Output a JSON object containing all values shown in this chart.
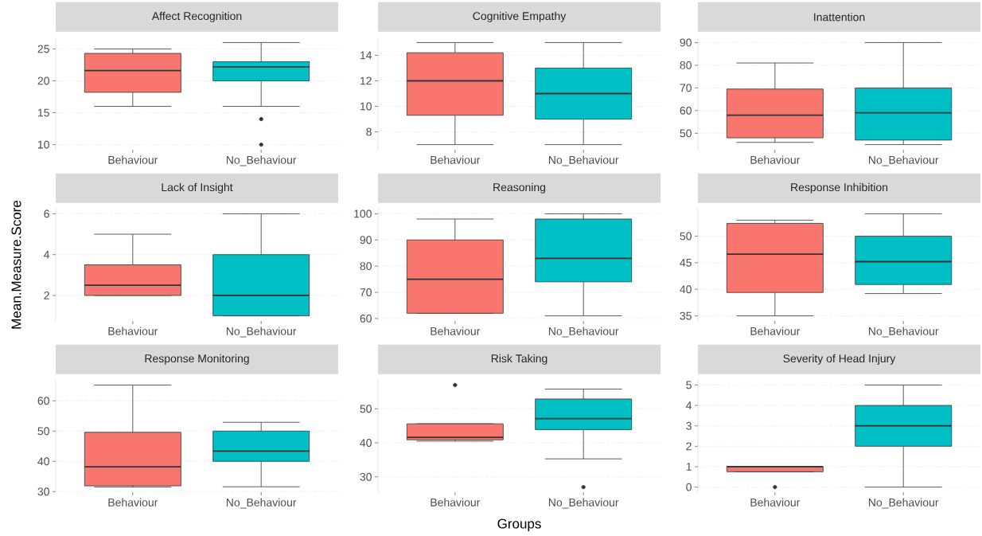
{
  "chart_data": [
    {
      "type": "box",
      "title": "Affect Recognition",
      "categories": [
        "Behaviour",
        "No_Behaviour"
      ],
      "colors": [
        "#f8766d",
        "#00bfc4"
      ],
      "ylim": [
        9.2,
        26.8
      ],
      "yticks": [
        10,
        15,
        20,
        25
      ],
      "grid": "y",
      "boxes": [
        {
          "low": 16,
          "q1": 18.2,
          "median": 21.6,
          "q3": 24.3,
          "high": 25
        },
        {
          "low": 16,
          "q1": 20,
          "median": 22.2,
          "q3": 23,
          "high": 26,
          "outliers": [
            14,
            10
          ]
        }
      ]
    },
    {
      "type": "box",
      "title": "Cognitive Empathy",
      "categories": [
        "Behaviour",
        "No_Behaviour"
      ],
      "colors": [
        "#f8766d",
        "#00bfc4"
      ],
      "ylim": [
        6.6,
        15.4
      ],
      "yticks": [
        8,
        10,
        12,
        14
      ],
      "grid": "y",
      "boxes": [
        {
          "low": 7,
          "q1": 9.3,
          "median": 12,
          "q3": 14.2,
          "high": 15
        },
        {
          "low": 7,
          "q1": 9,
          "median": 11,
          "q3": 13,
          "high": 15
        }
      ]
    },
    {
      "type": "box",
      "title": "Inattention",
      "categories": [
        "Behaviour",
        "No_Behaviour"
      ],
      "colors": [
        "#f8766d",
        "#00bfc4"
      ],
      "ylim": [
        42.75,
        92.25
      ],
      "yticks": [
        50,
        60,
        70,
        80,
        90
      ],
      "grid": "y",
      "boxes": [
        {
          "low": 46,
          "q1": 48,
          "median": 58,
          "q3": 69.5,
          "high": 81
        },
        {
          "low": 45,
          "q1": 47,
          "median": 59,
          "q3": 70,
          "high": 90
        }
      ]
    },
    {
      "type": "box",
      "title": "Lack of Insight",
      "ylabel": "Mean.Measure.Score",
      "categories": [
        "Behaviour",
        "No_Behaviour"
      ],
      "colors": [
        "#f8766d",
        "#00bfc4"
      ],
      "ylim": [
        0.75,
        6.25
      ],
      "yticks": [
        2,
        4,
        6
      ],
      "grid": "y",
      "boxes": [
        {
          "low": 2,
          "q1": 2,
          "median": 2.5,
          "q3": 3.5,
          "high": 5
        },
        {
          "low": 1,
          "q1": 1,
          "median": 2,
          "q3": 4,
          "high": 6
        }
      ]
    },
    {
      "type": "box",
      "title": "Reasoning",
      "categories": [
        "Behaviour",
        "No_Behaviour"
      ],
      "colors": [
        "#f8766d",
        "#00bfc4"
      ],
      "ylim": [
        59.05,
        101.95
      ],
      "yticks": [
        60,
        70,
        80,
        90,
        100
      ],
      "grid": "y",
      "boxes": [
        {
          "low": 62,
          "q1": 62,
          "median": 75,
          "q3": 90,
          "high": 98
        },
        {
          "low": 61,
          "q1": 74,
          "median": 83,
          "q3": 98,
          "high": 100
        }
      ]
    },
    {
      "type": "box",
      "title": "Response Inhibition",
      "categories": [
        "Behaviour",
        "No_Behaviour"
      ],
      "colors": [
        "#f8766d",
        "#00bfc4"
      ],
      "ylim": [
        34.04,
        55.16
      ],
      "yticks": [
        35,
        40,
        45,
        50
      ],
      "grid": "y",
      "boxes": [
        {
          "low": 35,
          "q1": 39.4,
          "median": 46.6,
          "q3": 52.4,
          "high": 53
        },
        {
          "low": 39.2,
          "q1": 40.9,
          "median": 45.2,
          "q3": 50,
          "high": 54.2
        }
      ]
    },
    {
      "type": "box",
      "title": "Response Monitoring",
      "categories": [
        "Behaviour",
        "No_Behaviour"
      ],
      "colors": [
        "#f8766d",
        "#00bfc4"
      ],
      "ylim": [
        29.8,
        66.9
      ],
      "yticks": [
        30,
        40,
        50,
        60
      ],
      "grid": "y",
      "boxes": [
        {
          "low": 31.5,
          "q1": 31.9,
          "median": 38.2,
          "q3": 49.6,
          "high": 65.2
        },
        {
          "low": 31.6,
          "q1": 40,
          "median": 43.4,
          "q3": 50,
          "high": 52.9
        }
      ]
    },
    {
      "type": "box",
      "title": "Risk Taking",
      "xlabel": "Groups",
      "categories": [
        "Behaviour",
        "No_Behaviour"
      ],
      "colors": [
        "#f8766d",
        "#00bfc4"
      ],
      "ylim": [
        25.5,
        58.5
      ],
      "yticks": [
        30,
        40,
        50
      ],
      "grid": "y",
      "boxes": [
        {
          "low": 40.5,
          "q1": 40.9,
          "median": 41.6,
          "q3": 45.6,
          "high": 45.6,
          "outliers": [
            57
          ]
        },
        {
          "low": 35.3,
          "q1": 43.9,
          "median": 47.1,
          "q3": 52.9,
          "high": 55.8,
          "outliers": [
            27
          ]
        }
      ]
    },
    {
      "type": "box",
      "title": "Severity of Head Injury",
      "categories": [
        "Behaviour",
        "No_Behaviour"
      ],
      "colors": [
        "#f8766d",
        "#00bfc4"
      ],
      "ylim": [
        -0.25,
        5.25
      ],
      "yticks": [
        0,
        1,
        2,
        3,
        4,
        5
      ],
      "grid": "y",
      "boxes": [
        {
          "low": 0.75,
          "q1": 0.75,
          "median": 1,
          "q3": 1,
          "high": 1,
          "outliers": [
            0
          ]
        },
        {
          "low": 0,
          "q1": 2,
          "median": 3,
          "q3": 4,
          "high": 5
        }
      ]
    }
  ]
}
